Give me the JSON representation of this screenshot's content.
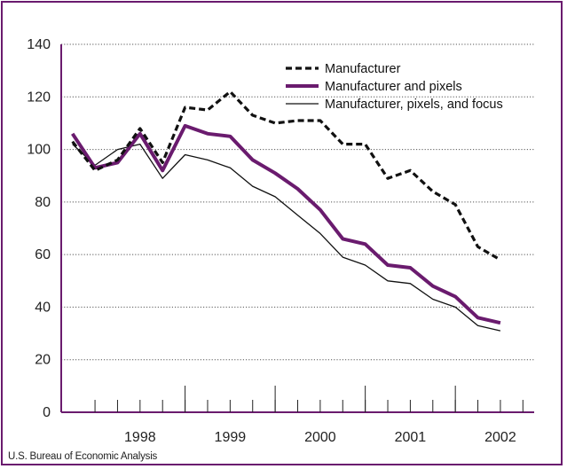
{
  "source_note": "U.S. Bureau of Economic Analysis",
  "chart_data": {
    "type": "line",
    "title": "",
    "xlabel": "",
    "ylabel": "",
    "ylim": [
      0,
      140
    ],
    "yticks": [
      0,
      20,
      40,
      60,
      80,
      100,
      120,
      140
    ],
    "xlim": [
      1997.5,
      2002.75
    ],
    "xtick_labels": [
      "1998",
      "1999",
      "2000",
      "2001",
      "2002"
    ],
    "grid": "horizontal dotted",
    "legend_position": "top-right",
    "colors": {
      "frame": "#6a1b6e",
      "purple": "#6a1b6e",
      "black": "#111111"
    },
    "x": [
      1997.625,
      1997.875,
      1998.125,
      1998.375,
      1998.625,
      1998.875,
      1999.125,
      1999.375,
      1999.625,
      1999.875,
      2000.125,
      2000.375,
      2000.625,
      2000.875,
      2001.125,
      2001.375,
      2001.625,
      2001.875,
      2002.125,
      2002.375
    ],
    "series": [
      {
        "name": "Manufacturer",
        "style": "dashed",
        "values": [
          103,
          92,
          96,
          108,
          95,
          116,
          115,
          122,
          113,
          110,
          111,
          111,
          102,
          102,
          89,
          92,
          84,
          79,
          63,
          58
        ]
      },
      {
        "name": "Manufacturer and pixels",
        "style": "thick-purple",
        "values": [
          106,
          93,
          95,
          106,
          92,
          109,
          106,
          105,
          96,
          91,
          85,
          77,
          66,
          64,
          56,
          55,
          48,
          44,
          36,
          34
        ]
      },
      {
        "name": "Manufacturer, pixels, and focus",
        "style": "thin",
        "values": [
          102,
          94,
          100,
          102,
          89,
          98,
          96,
          93,
          86,
          82,
          75,
          68,
          59,
          56,
          50,
          49,
          43,
          40,
          33,
          31
        ]
      }
    ]
  }
}
